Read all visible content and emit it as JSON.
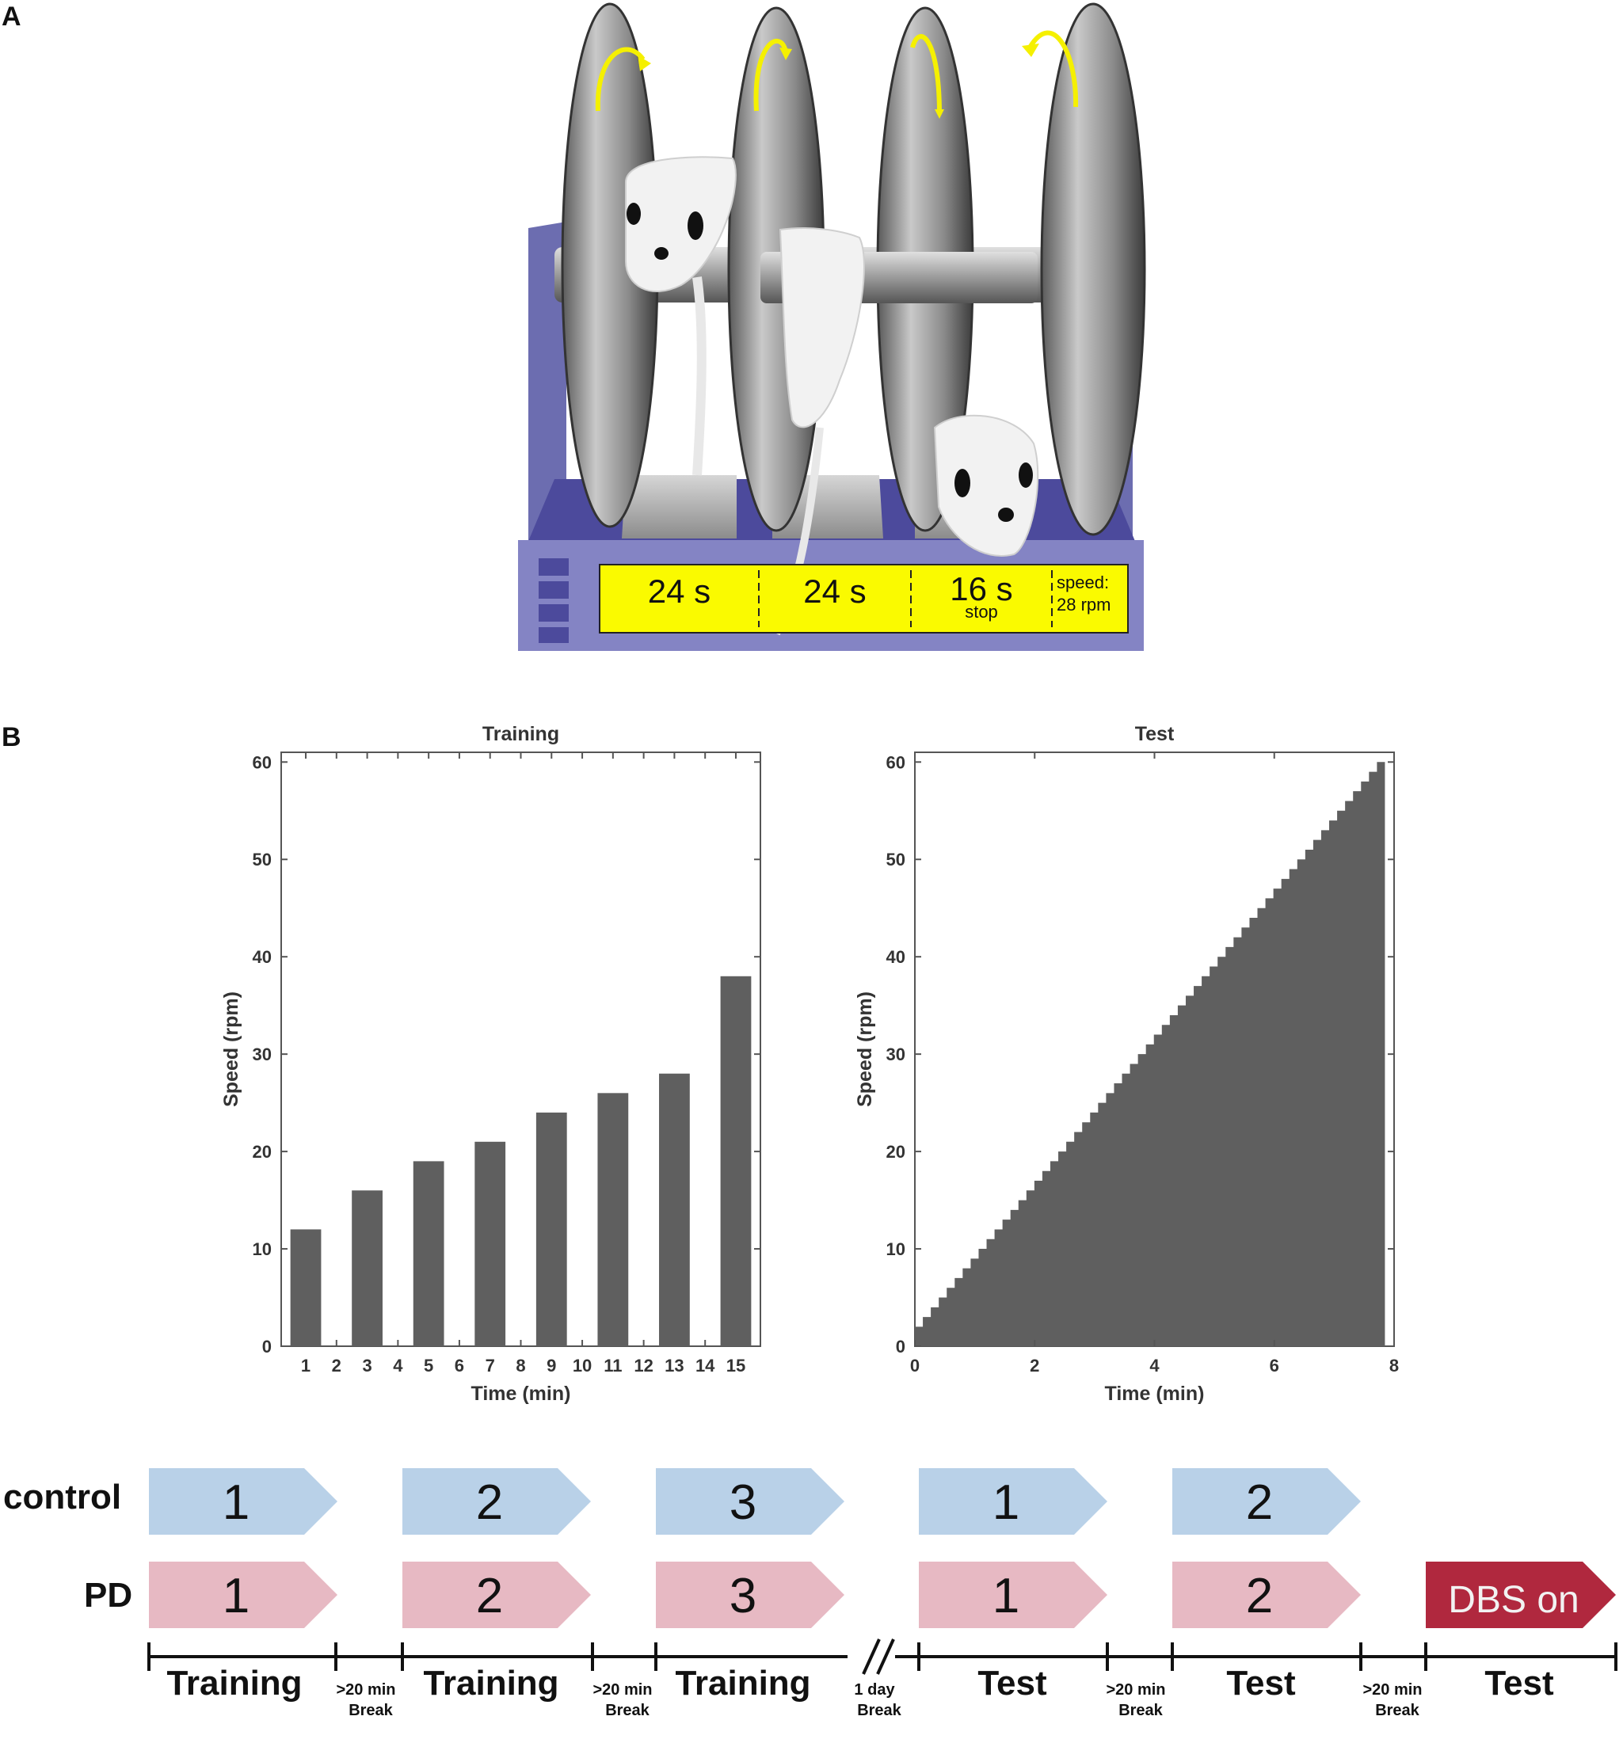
{
  "panel_a": {
    "letter": "A",
    "display": {
      "segments": [
        {
          "value": "24 s",
          "sub": ""
        },
        {
          "value": "24 s",
          "sub": ""
        },
        {
          "value": "16 s",
          "sub": "stop"
        }
      ],
      "speed_label": "speed:",
      "speed_value": "28 rpm"
    },
    "colors": {
      "frame": "#6c6db0",
      "frame_dark": "#4c4a9c",
      "display": "#fafa00",
      "arrow": "#f5f000"
    }
  },
  "panel_b": {
    "letter": "B",
    "colors": {
      "bar": "#5f5f5f",
      "control": "#b9d1e8",
      "pd": "#e7b9c3",
      "dbs": "#b0283e"
    }
  },
  "chart_data": [
    {
      "type": "bar",
      "title": "Training",
      "xlabel": "Time (min)",
      "ylabel": "Speed (rpm)",
      "x_ticks": [
        "1",
        "2",
        "3",
        "4",
        "5",
        "6",
        "7",
        "8",
        "9",
        "10",
        "11",
        "12",
        "13",
        "14",
        "15"
      ],
      "y_ticks": [
        "0",
        "10",
        "20",
        "30",
        "40",
        "50",
        "60"
      ],
      "ylim": [
        0,
        61
      ],
      "bars": [
        {
          "x": 1,
          "value": 12
        },
        {
          "x": 3,
          "value": 16
        },
        {
          "x": 5,
          "value": 19
        },
        {
          "x": 7,
          "value": 21
        },
        {
          "x": 9,
          "value": 24
        },
        {
          "x": 11,
          "value": 26
        },
        {
          "x": 13,
          "value": 28
        },
        {
          "x": 15,
          "value": 38
        }
      ],
      "bar_width_min": 1.0,
      "grid": false
    },
    {
      "type": "area",
      "title": "Test",
      "xlabel": "Time (min)",
      "ylabel": "Speed (rpm)",
      "x_ticks": [
        "0",
        "2",
        "4",
        "6",
        "8"
      ],
      "y_ticks": [
        "0",
        "10",
        "20",
        "30",
        "40",
        "50",
        "60"
      ],
      "xlim": [
        0,
        8
      ],
      "ylim": [
        0,
        61
      ],
      "ramp": {
        "start_rpm": 2,
        "end_rpm": 60,
        "step_rpm": 1,
        "step_min": 0.133
      },
      "grid": false
    }
  ],
  "protocol": {
    "groups": [
      {
        "label": "control",
        "arrows": [
          "1",
          "2",
          "3",
          "1",
          "2"
        ]
      },
      {
        "label": "PD",
        "arrows": [
          "1",
          "2",
          "3",
          "1",
          "2"
        ],
        "extra": "DBS on"
      }
    ],
    "phases": [
      "Training",
      "Training",
      "Training",
      "Test",
      "Test",
      "Test"
    ],
    "breaks": [
      {
        "top": ">20 min",
        "bottom": "Break"
      },
      {
        "top": ">20 min",
        "bottom": "Break"
      },
      {
        "top": "1 day",
        "bottom": "Break"
      },
      {
        "top": ">20 min",
        "bottom": "Break"
      },
      {
        "top": ">20 min",
        "bottom": "Break"
      }
    ]
  }
}
